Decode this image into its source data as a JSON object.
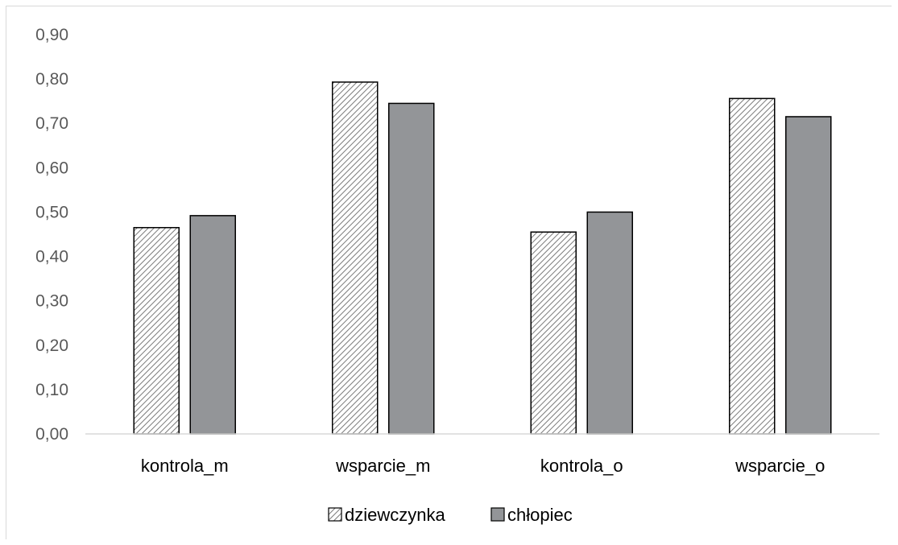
{
  "chart_data": {
    "type": "bar",
    "title": "",
    "xlabel": "",
    "ylabel": "",
    "categories": [
      "kontrola_m",
      "wsparcie_m",
      "kontrola_o",
      "wsparcie_o"
    ],
    "series": [
      {
        "name": "dziewczynka",
        "values": [
          0.465,
          0.793,
          0.455,
          0.756
        ],
        "color": "#ffffff",
        "pattern": "diagonal-hatch"
      },
      {
        "name": "chłopiec",
        "values": [
          0.492,
          0.745,
          0.5,
          0.715
        ],
        "color": "#939598",
        "pattern": "solid"
      }
    ],
    "ylim": [
      0,
      0.9
    ],
    "yticks": [
      0.0,
      0.1,
      0.2,
      0.3,
      0.4,
      0.5,
      0.6,
      0.7,
      0.8,
      0.9
    ],
    "ytick_labels": [
      "0,00",
      "0,10",
      "0,20",
      "0,30",
      "0,40",
      "0,50",
      "0,60",
      "0,70",
      "0,80",
      "0,90"
    ],
    "grid": false,
    "legend_position": "bottom"
  }
}
